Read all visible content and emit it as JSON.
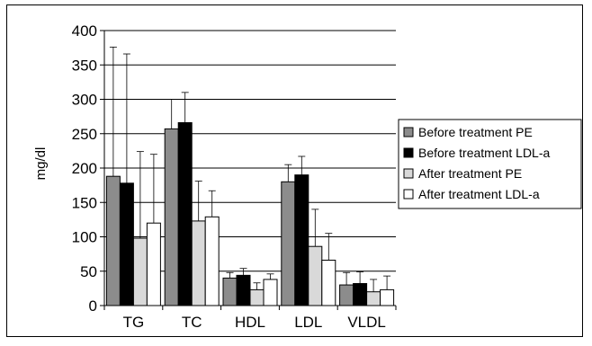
{
  "chart_data": {
    "type": "bar",
    "categories": [
      "TG",
      "TC",
      "HDL",
      "LDL",
      "VLDL"
    ],
    "ylabel": "mg/dl",
    "ylim": [
      0,
      400
    ],
    "yticks": [
      0,
      50,
      100,
      150,
      200,
      250,
      300,
      350,
      400
    ],
    "grid": true,
    "legend_position": "right",
    "series": [
      {
        "name": "Before treatment PE",
        "color": "#8c8c8c",
        "values": [
          188,
          257,
          40,
          180,
          30
        ],
        "error": [
          188,
          43,
          8,
          25,
          18
        ]
      },
      {
        "name": "Before treatment LDL-a",
        "color": "#000000",
        "values": [
          178,
          266,
          44,
          190,
          32
        ],
        "error": [
          188,
          44,
          10,
          27,
          17
        ]
      },
      {
        "name": "After treatment PE",
        "color": "#d9d9d9",
        "values": [
          98,
          123,
          23,
          86,
          20
        ],
        "error": [
          126,
          58,
          10,
          54,
          18
        ]
      },
      {
        "name": "After treatment LDL-a",
        "color": "#ffffff",
        "values": [
          120,
          129,
          38,
          66,
          23
        ],
        "error": [
          100,
          38,
          8,
          39,
          20
        ]
      }
    ]
  }
}
